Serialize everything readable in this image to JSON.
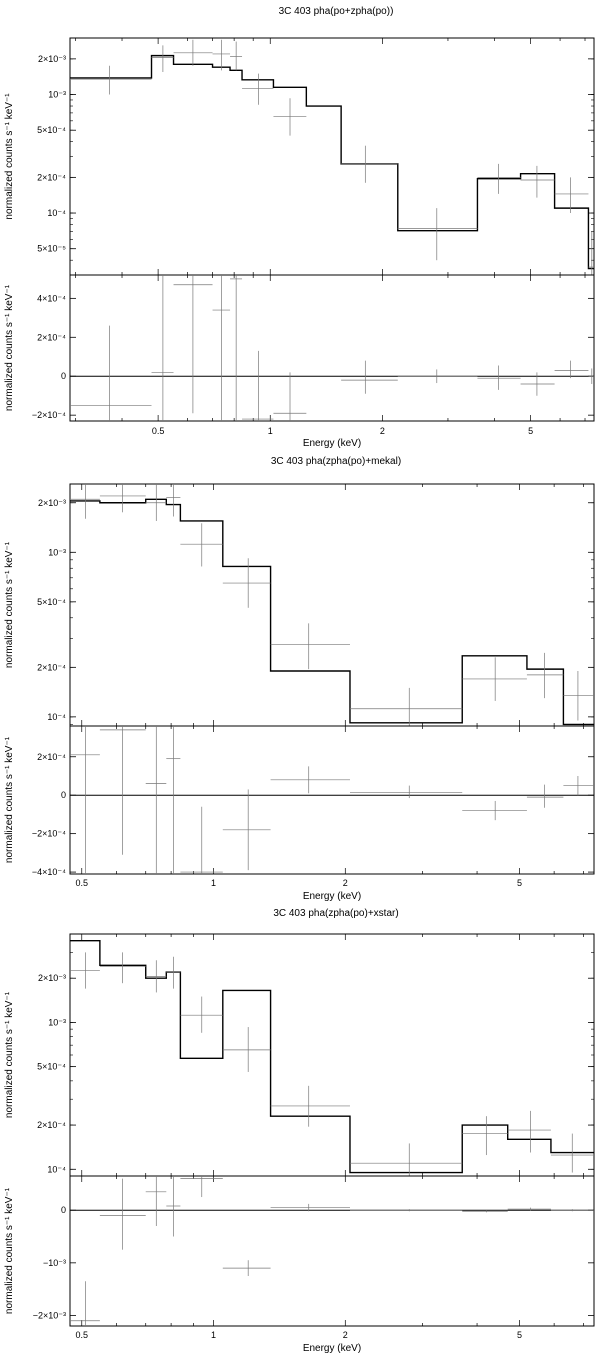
{
  "chart_data": [
    {
      "type": "line",
      "title": "3C 403 pha(po+zpha(po))",
      "xlabel": "Energy (keV)",
      "xscale": "log",
      "xlim": [
        0.29,
        7.4
      ],
      "xticks": [
        {
          "v": 0.5,
          "t": "0.5"
        },
        {
          "v": 1,
          "t": "1"
        },
        {
          "v": 2,
          "t": "2"
        },
        {
          "v": 5,
          "t": "5"
        }
      ],
      "top_panel": {
        "ylabel": "normalized counts s⁻¹ keV⁻¹",
        "yscale": "log",
        "ylim": [
          3e-05,
          0.003
        ],
        "yticks": [
          {
            "v": 0.002,
            "t": "2×10⁻³"
          },
          {
            "v": 0.001,
            "t": "10⁻³"
          },
          {
            "v": 0.0005,
            "t": "5×10⁻⁴"
          },
          {
            "v": 0.0002,
            "t": "2×10⁻⁴"
          },
          {
            "v": 0.0001,
            "t": "10⁻⁴"
          },
          {
            "v": 5e-05,
            "t": "5×10⁻⁵"
          }
        ],
        "model_step": [
          [
            0.29,
            0.00138
          ],
          [
            0.48,
            0.00213
          ],
          [
            0.55,
            0.0018
          ],
          [
            0.7,
            0.0017
          ],
          [
            0.78,
            0.0016
          ],
          [
            0.84,
            0.00133
          ],
          [
            1.02,
            0.00115
          ],
          [
            1.25,
            0.0008
          ],
          [
            1.55,
            0.00026
          ],
          [
            2.2,
            7.1e-05
          ],
          [
            3.6,
            0.000195
          ],
          [
            4.7,
            0.000215
          ],
          [
            5.8,
            0.00011
          ],
          [
            7.15,
            3.4e-05
          ],
          [
            7.4,
            3.4e-05
          ]
        ],
        "data": [
          {
            "x": 0.37,
            "xlo": 0.29,
            "xhi": 0.48,
            "y": 0.00135,
            "ylo": 0.001,
            "yhi": 0.00175
          },
          {
            "x": 0.515,
            "xlo": 0.48,
            "xhi": 0.55,
            "y": 0.00205,
            "ylo": 0.00155,
            "yhi": 0.0026
          },
          {
            "x": 0.62,
            "xlo": 0.55,
            "xhi": 0.7,
            "y": 0.00225,
            "ylo": 0.00175,
            "yhi": 0.0029
          },
          {
            "x": 0.74,
            "xlo": 0.7,
            "xhi": 0.78,
            "y": 0.0022,
            "ylo": 0.0016,
            "yhi": 0.0029
          },
          {
            "x": 0.81,
            "xlo": 0.78,
            "xhi": 0.84,
            "y": 0.0021,
            "ylo": 0.0016,
            "yhi": 0.0028
          },
          {
            "x": 0.93,
            "xlo": 0.84,
            "xhi": 1.02,
            "y": 0.00112,
            "ylo": 0.00082,
            "yhi": 0.0015
          },
          {
            "x": 1.13,
            "xlo": 1.02,
            "xhi": 1.25,
            "y": 0.00065,
            "ylo": 0.00045,
            "yhi": 0.00093
          },
          {
            "x": 1.8,
            "xlo": 1.55,
            "xhi": 2.2,
            "y": 0.00026,
            "ylo": 0.00018,
            "yhi": 0.00037
          },
          {
            "x": 2.8,
            "xlo": 2.2,
            "xhi": 3.6,
            "y": 7.4e-05,
            "ylo": 4e-05,
            "yhi": 0.00011
          },
          {
            "x": 4.1,
            "xlo": 3.6,
            "xhi": 4.7,
            "y": 0.0002,
            "ylo": 0.000145,
            "yhi": 0.00026
          },
          {
            "x": 5.2,
            "xlo": 4.7,
            "xhi": 5.8,
            "y": 0.00019,
            "ylo": 0.000135,
            "yhi": 0.00025
          },
          {
            "x": 6.4,
            "xlo": 5.8,
            "xhi": 7.15,
            "y": 0.000145,
            "ylo": 0.0001,
            "yhi": 0.0002
          },
          {
            "x": 7.3,
            "xlo": 7.15,
            "xhi": 7.4,
            "y": 3.5e-05,
            "ylo": 3e-05,
            "yhi": 7e-05
          }
        ]
      },
      "residual_panel": {
        "ylabel": "normalized counts s⁻¹ keV⁻¹",
        "yscale": "linear",
        "ylim": [
          -0.00023,
          0.00052
        ],
        "yticks": [
          {
            "v": 0.0004,
            "t": "4×10⁻⁴"
          },
          {
            "v": 0.0002,
            "t": "2×10⁻⁴"
          },
          {
            "v": 0,
            "t": "0"
          },
          {
            "v": -0.0002,
            "t": "−2×10⁻⁴"
          }
        ],
        "zero_line": 0,
        "data": [
          {
            "x": 0.37,
            "xlo": 0.29,
            "xhi": 0.48,
            "y": -0.00015,
            "ylo": -0.00023,
            "yhi": 0.00026
          },
          {
            "x": 0.515,
            "xlo": 0.48,
            "xhi": 0.55,
            "y": 2e-05,
            "ylo": -0.00023,
            "yhi": 0.00052
          },
          {
            "x": 0.62,
            "xlo": 0.55,
            "xhi": 0.7,
            "y": 0.00047,
            "ylo": -0.00019,
            "yhi": 0.00052
          },
          {
            "x": 0.74,
            "xlo": 0.7,
            "xhi": 0.78,
            "y": 0.00034,
            "ylo": -0.00023,
            "yhi": 0.00052
          },
          {
            "x": 0.81,
            "xlo": 0.78,
            "xhi": 0.84,
            "y": 0.0005,
            "ylo": -0.00023,
            "yhi": 0.00052
          },
          {
            "x": 0.93,
            "xlo": 0.84,
            "xhi": 1.02,
            "y": -0.00022,
            "ylo": -0.00023,
            "yhi": 0.00013
          },
          {
            "x": 1.13,
            "xlo": 1.02,
            "xhi": 1.25,
            "y": -0.00019,
            "ylo": -0.00023,
            "yhi": 2e-05
          },
          {
            "x": 1.8,
            "xlo": 1.55,
            "xhi": 2.2,
            "y": -2e-05,
            "ylo": -9e-05,
            "yhi": 8e-05
          },
          {
            "x": 2.8,
            "xlo": 2.2,
            "xhi": 3.6,
            "y": 0,
            "ylo": -3.5e-05,
            "yhi": 3.5e-05
          },
          {
            "x": 4.1,
            "xlo": 3.6,
            "xhi": 4.7,
            "y": -1e-05,
            "ylo": -7e-05,
            "yhi": 5.5e-05
          },
          {
            "x": 5.2,
            "xlo": 4.7,
            "xhi": 5.8,
            "y": -4e-05,
            "ylo": -0.0001,
            "yhi": 2e-05
          },
          {
            "x": 6.4,
            "xlo": 5.8,
            "xhi": 7.15,
            "y": 3e-05,
            "ylo": -1e-05,
            "yhi": 8e-05
          },
          {
            "x": 7.3,
            "xlo": 7.15,
            "xhi": 7.4,
            "y": 0,
            "ylo": -4e-05,
            "yhi": 4e-05
          }
        ]
      }
    },
    {
      "type": "line",
      "title": "3C 403 pha(zpha(po)+mekal)",
      "xlabel": "Energy (keV)",
      "xscale": "log",
      "xlim": [
        0.47,
        7.4
      ],
      "xticks": [
        {
          "v": 0.5,
          "t": "0.5"
        },
        {
          "v": 1,
          "t": "1"
        },
        {
          "v": 2,
          "t": "2"
        },
        {
          "v": 5,
          "t": "5"
        }
      ],
      "top_panel": {
        "ylabel": "normalized counts s⁻¹ keV⁻¹",
        "yscale": "log",
        "ylim": [
          8.8e-05,
          0.0026
        ],
        "yticks": [
          {
            "v": 0.002,
            "t": "2×10⁻³"
          },
          {
            "v": 0.001,
            "t": "10⁻³"
          },
          {
            "v": 0.0005,
            "t": "5×10⁻⁴"
          },
          {
            "v": 0.0002,
            "t": "2×10⁻⁴"
          },
          {
            "v": 0.0001,
            "t": "10⁻⁴"
          }
        ],
        "model_step": [
          [
            0.47,
            0.00205
          ],
          [
            0.55,
            0.002
          ],
          [
            0.7,
            0.0021
          ],
          [
            0.78,
            0.00195
          ],
          [
            0.84,
            0.00155
          ],
          [
            1.05,
            0.00082
          ],
          [
            1.35,
            0.00019
          ],
          [
            2.05,
            9.2e-05
          ],
          [
            3.7,
            0.000235
          ],
          [
            5.2,
            0.000195
          ],
          [
            6.3,
            9e-05
          ],
          [
            7.4,
            9e-05
          ]
        ],
        "data": [
          {
            "x": 0.51,
            "xlo": 0.47,
            "xhi": 0.55,
            "y": 0.0021,
            "ylo": 0.0016,
            "yhi": 0.0026
          },
          {
            "x": 0.62,
            "xlo": 0.55,
            "xhi": 0.7,
            "y": 0.0022,
            "ylo": 0.00175,
            "yhi": 0.0026
          },
          {
            "x": 0.74,
            "xlo": 0.7,
            "xhi": 0.78,
            "y": 0.002,
            "ylo": 0.00155,
            "yhi": 0.0026
          },
          {
            "x": 0.81,
            "xlo": 0.78,
            "xhi": 0.84,
            "y": 0.00215,
            "ylo": 0.00165,
            "yhi": 0.0026
          },
          {
            "x": 0.94,
            "xlo": 0.84,
            "xhi": 1.05,
            "y": 0.00112,
            "ylo": 0.00082,
            "yhi": 0.0015
          },
          {
            "x": 1.2,
            "xlo": 1.05,
            "xhi": 1.35,
            "y": 0.00065,
            "ylo": 0.00046,
            "yhi": 0.00092
          },
          {
            "x": 1.65,
            "xlo": 1.35,
            "xhi": 2.05,
            "y": 0.000275,
            "ylo": 0.000195,
            "yhi": 0.00037
          },
          {
            "x": 2.8,
            "xlo": 2.05,
            "xhi": 3.7,
            "y": 0.000112,
            "ylo": 8.8e-05,
            "yhi": 0.00015
          },
          {
            "x": 4.4,
            "xlo": 3.7,
            "xhi": 5.2,
            "y": 0.00017,
            "ylo": 0.000125,
            "yhi": 0.00023
          },
          {
            "x": 5.7,
            "xlo": 5.2,
            "xhi": 6.3,
            "y": 0.00018,
            "ylo": 0.00013,
            "yhi": 0.000245
          },
          {
            "x": 6.8,
            "xlo": 6.3,
            "xhi": 7.4,
            "y": 0.000135,
            "ylo": 9.5e-05,
            "yhi": 0.00019
          }
        ]
      },
      "residual_panel": {
        "ylabel": "normalized counts s⁻¹ keV⁻¹",
        "yscale": "linear",
        "ylim": [
          -0.00041,
          0.00036
        ],
        "yticks": [
          {
            "v": 0.0002,
            "t": "2×10⁻⁴"
          },
          {
            "v": 0,
            "t": "0"
          },
          {
            "v": -0.0002,
            "t": "−2×10⁻⁴"
          },
          {
            "v": -0.0004,
            "t": "−4×10⁻⁴"
          }
        ],
        "zero_line": 0,
        "data": [
          {
            "x": 0.51,
            "xlo": 0.47,
            "xhi": 0.55,
            "y": 0.00021,
            "ylo": -0.00041,
            "yhi": 0.00036
          },
          {
            "x": 0.62,
            "xlo": 0.55,
            "xhi": 0.7,
            "y": 0.00034,
            "ylo": -0.00031,
            "yhi": 0.00036
          },
          {
            "x": 0.74,
            "xlo": 0.7,
            "xhi": 0.78,
            "y": 6e-05,
            "ylo": -0.00041,
            "yhi": 0.00036
          },
          {
            "x": 0.81,
            "xlo": 0.78,
            "xhi": 0.84,
            "y": 0.00019,
            "ylo": -0.00041,
            "yhi": 0.00036
          },
          {
            "x": 0.94,
            "xlo": 0.84,
            "xhi": 1.05,
            "y": -0.0004,
            "ylo": -0.00041,
            "yhi": -6e-05
          },
          {
            "x": 1.2,
            "xlo": 1.05,
            "xhi": 1.35,
            "y": -0.00018,
            "ylo": -0.00039,
            "yhi": 3e-05
          },
          {
            "x": 1.65,
            "xlo": 1.35,
            "xhi": 2.05,
            "y": 8e-05,
            "ylo": 1e-05,
            "yhi": 0.00015
          },
          {
            "x": 2.8,
            "xlo": 2.05,
            "xhi": 3.7,
            "y": 1.5e-05,
            "ylo": -1.5e-05,
            "yhi": 5e-05
          },
          {
            "x": 4.4,
            "xlo": 3.7,
            "xhi": 5.2,
            "y": -8e-05,
            "ylo": -0.00013,
            "yhi": -3e-05
          },
          {
            "x": 5.7,
            "xlo": 5.2,
            "xhi": 6.3,
            "y": -1e-05,
            "ylo": -6.5e-05,
            "yhi": 5.5e-05
          },
          {
            "x": 6.8,
            "xlo": 6.3,
            "xhi": 7.4,
            "y": 5e-05,
            "ylo": 0,
            "yhi": 0.0001
          }
        ]
      }
    },
    {
      "type": "line",
      "title": "3C 403 pha(zpha(po)+xstar)",
      "xlabel": "Energy (keV)",
      "xscale": "log",
      "xlim": [
        0.47,
        7.4
      ],
      "xticks": [
        {
          "v": 0.5,
          "t": "0.5"
        },
        {
          "v": 1,
          "t": "1"
        },
        {
          "v": 2,
          "t": "2"
        },
        {
          "v": 5,
          "t": "5"
        }
      ],
      "top_panel": {
        "ylabel": "normalized counts s⁻¹ keV⁻¹",
        "yscale": "log",
        "ylim": [
          9e-05,
          0.004
        ],
        "yticks": [
          {
            "v": 0.002,
            "t": "2×10⁻³"
          },
          {
            "v": 0.001,
            "t": "10⁻³"
          },
          {
            "v": 0.0005,
            "t": "5×10⁻⁴"
          },
          {
            "v": 0.0002,
            "t": "2×10⁻⁴"
          },
          {
            "v": 0.0001,
            "t": "10⁻⁴"
          }
        ],
        "model_step": [
          [
            0.47,
            0.0036
          ],
          [
            0.55,
            0.00245
          ],
          [
            0.7,
            0.002
          ],
          [
            0.78,
            0.0022
          ],
          [
            0.84,
            0.00057
          ],
          [
            1.05,
            0.00165
          ],
          [
            1.35,
            0.00023
          ],
          [
            2.05,
            9.5e-05
          ],
          [
            3.7,
            0.0002
          ],
          [
            4.7,
            0.00016
          ],
          [
            5.9,
            0.00013
          ],
          [
            7.4,
            0.00013
          ]
        ],
        "data": [
          {
            "x": 0.51,
            "xlo": 0.47,
            "xhi": 0.55,
            "y": 0.00225,
            "ylo": 0.0017,
            "yhi": 0.003
          },
          {
            "x": 0.62,
            "xlo": 0.55,
            "xhi": 0.7,
            "y": 0.0024,
            "ylo": 0.00185,
            "yhi": 0.003
          },
          {
            "x": 0.74,
            "xlo": 0.7,
            "xhi": 0.78,
            "y": 0.00205,
            "ylo": 0.0016,
            "yhi": 0.00265
          },
          {
            "x": 0.81,
            "xlo": 0.78,
            "xhi": 0.84,
            "y": 0.0022,
            "ylo": 0.0017,
            "yhi": 0.0028
          },
          {
            "x": 0.94,
            "xlo": 0.84,
            "xhi": 1.05,
            "y": 0.00112,
            "ylo": 0.00085,
            "yhi": 0.0015
          },
          {
            "x": 1.2,
            "xlo": 1.05,
            "xhi": 1.35,
            "y": 0.00065,
            "ylo": 0.00046,
            "yhi": 0.00093
          },
          {
            "x": 1.65,
            "xlo": 1.35,
            "xhi": 2.05,
            "y": 0.00027,
            "ylo": 0.000195,
            "yhi": 0.00037
          },
          {
            "x": 2.8,
            "xlo": 2.05,
            "xhi": 3.7,
            "y": 0.00011,
            "ylo": 9e-05,
            "yhi": 0.00015
          },
          {
            "x": 4.2,
            "xlo": 3.7,
            "xhi": 4.7,
            "y": 0.000175,
            "ylo": 0.000125,
            "yhi": 0.00023
          },
          {
            "x": 5.3,
            "xlo": 4.7,
            "xhi": 5.9,
            "y": 0.000185,
            "ylo": 0.00013,
            "yhi": 0.00025
          },
          {
            "x": 6.6,
            "xlo": 5.9,
            "xhi": 7.4,
            "y": 0.000125,
            "ylo": 9.5e-05,
            "yhi": 0.000175
          }
        ]
      },
      "residual_panel": {
        "ylabel": "normalized counts s⁻¹ keV⁻¹",
        "yscale": "linear",
        "ylim": [
          -0.0022,
          0.00065
        ],
        "yticks": [
          {
            "v": 0,
            "t": "0"
          },
          {
            "v": -0.001,
            "t": "−10⁻³"
          },
          {
            "v": -0.002,
            "t": "−2×10⁻³"
          }
        ],
        "zero_line": 0,
        "data": [
          {
            "x": 0.51,
            "xlo": 0.47,
            "xhi": 0.55,
            "y": -0.0021,
            "ylo": -0.0022,
            "yhi": -0.00135
          },
          {
            "x": 0.62,
            "xlo": 0.55,
            "xhi": 0.7,
            "y": -0.0001,
            "ylo": -0.00075,
            "yhi": 0.0006
          },
          {
            "x": 0.74,
            "xlo": 0.7,
            "xhi": 0.78,
            "y": 0.00035,
            "ylo": -0.0003,
            "yhi": 0.00065
          },
          {
            "x": 0.81,
            "xlo": 0.78,
            "xhi": 0.84,
            "y": 8e-05,
            "ylo": -0.0005,
            "yhi": 0.00065
          },
          {
            "x": 0.94,
            "xlo": 0.84,
            "xhi": 1.05,
            "y": 0.0006,
            "ylo": 0.00025,
            "yhi": 0.00065
          },
          {
            "x": 1.2,
            "xlo": 1.05,
            "xhi": 1.35,
            "y": -0.0011,
            "ylo": -0.00125,
            "yhi": -0.00095
          },
          {
            "x": 1.65,
            "xlo": 1.35,
            "xhi": 2.05,
            "y": 5e-05,
            "ylo": -2e-05,
            "yhi": 0.00012
          },
          {
            "x": 2.8,
            "xlo": 2.05,
            "xhi": 3.7,
            "y": 0,
            "ylo": -2e-05,
            "yhi": 2e-05
          },
          {
            "x": 4.2,
            "xlo": 3.7,
            "xhi": 4.7,
            "y": -2e-05,
            "ylo": -4e-05,
            "yhi": 0
          },
          {
            "x": 5.3,
            "xlo": 4.7,
            "xhi": 5.9,
            "y": 2e-05,
            "ylo": -1e-05,
            "yhi": 5e-05
          },
          {
            "x": 6.6,
            "xlo": 5.9,
            "xhi": 7.4,
            "y": 0,
            "ylo": -2e-05,
            "yhi": 2e-05
          }
        ]
      }
    }
  ]
}
